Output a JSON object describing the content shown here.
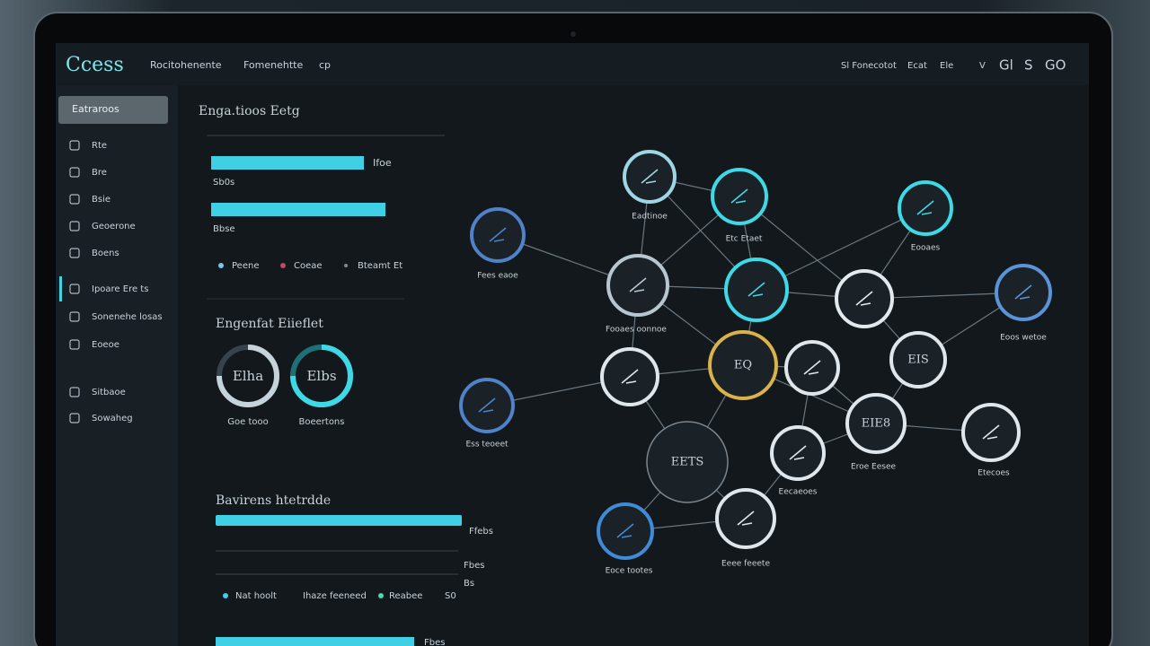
{
  "header": {
    "brand": "Ccess",
    "nav": [
      "Rocitohenente",
      "Fomenehtte",
      "cp"
    ],
    "tools": [
      "Sl Fonecotot",
      "Ecat",
      "Ele",
      "V",
      "Gl",
      "S",
      "GO"
    ]
  },
  "sidebar": {
    "active": "Eatraroos",
    "items": [
      "Rte",
      "Bre",
      "Bsie",
      "Geoerone",
      "Boens",
      "Ipoare Ere ts",
      "Sonenehe losas",
      "Eoeoe",
      "Sitbaoe",
      "Sowaheg"
    ]
  },
  "panel_top": {
    "title": "Enga.tioos Eetg",
    "bars": [
      {
        "label": "Sb0s",
        "tag": "Ifoe"
      },
      {
        "label": "Bbse"
      }
    ],
    "legend": [
      "Peene",
      "Coeae",
      "Bteamt Et"
    ]
  },
  "panel_rings": {
    "title": "Engenfat Eiieflet",
    "rings": [
      {
        "icon": "Elha",
        "label": "Goe tooo"
      },
      {
        "icon": "Elbs",
        "label": "Boeertons"
      }
    ]
  },
  "panel_bottom": {
    "title": "Bavirens htetrdde",
    "tags": [
      "Ffebs",
      "Fbes",
      "Bs"
    ],
    "legend": [
      "Nat hoolt",
      "Ihaze feeneed",
      "Reabee",
      "S0"
    ],
    "footer_tag": "Fbes"
  },
  "network": {
    "nodes": [
      {
        "label": "Eadtinoe"
      },
      {
        "label": "Etc Etaet"
      },
      {
        "label": "Fees eaoe"
      },
      {
        "label": "Eooaes"
      },
      {
        "label": "Fooaes oonnoe"
      },
      {},
      {},
      {
        "label": "Eoos wetoe"
      },
      {
        "icon": "EQ"
      },
      {},
      {},
      {
        "icon": "EIS"
      },
      {
        "label": "Ess teoeet"
      },
      {
        "icon": "EIE8",
        "label": "Eroe Eesee"
      },
      {
        "label": "Etecoes"
      },
      {
        "icon": "EETS"
      },
      {
        "label": "Eecaeoes"
      },
      {
        "label": "Eoce tootes"
      },
      {
        "label": "Eeee feeete"
      }
    ]
  }
}
